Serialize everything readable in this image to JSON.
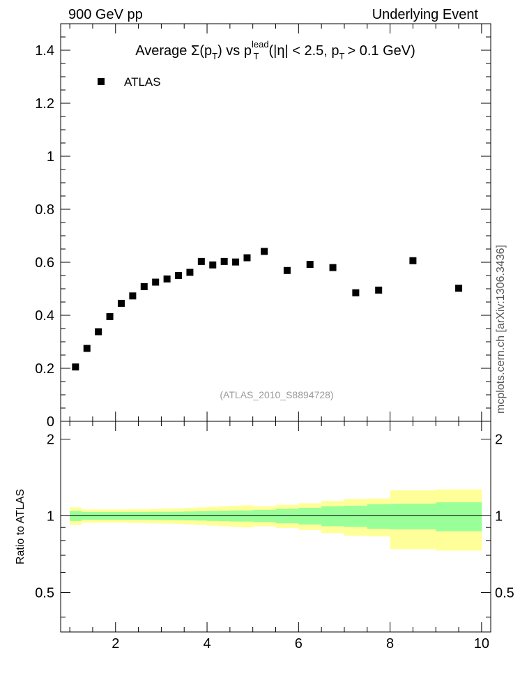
{
  "header": {
    "left": "900 GeV pp",
    "right": "Underlying Event"
  },
  "side_label": "mcplots.cern.ch [arXiv:1306.3436]",
  "reference_label": "(ATLAS_2010_S8894728)",
  "chart_data": [
    {
      "type": "scatter",
      "title": {
        "prefix": "Average",
        "sigma": "Σ(p",
        "sigma_sub": "T",
        "mid": ") vs p",
        "mid_sup": "lead",
        "mid_sub": "T",
        "cut_open": "(|η| < 2.5, p",
        "cut_sub": "T",
        "cut_close": "> 0.1 GeV)"
      },
      "legend": {
        "entry": "ATLAS",
        "position": "top-left"
      },
      "xlim": [
        0.8,
        10.2
      ],
      "ylim": [
        0,
        1.5
      ],
      "yticks": [
        0.2,
        0.4,
        0.6,
        0.8,
        1.0,
        1.2,
        1.4
      ],
      "ytick_labels": [
        "0.2",
        "0.4",
        "0.6",
        "0.8",
        "1",
        "1.2",
        "1.4"
      ],
      "y0_label": "0",
      "series": [
        {
          "name": "ATLAS",
          "x": [
            1.125,
            1.375,
            1.625,
            1.875,
            2.125,
            2.375,
            2.625,
            2.875,
            3.125,
            3.375,
            3.625,
            3.875,
            4.125,
            4.375,
            4.625,
            4.875,
            5.25,
            5.75,
            6.25,
            6.75,
            7.25,
            7.75,
            8.5,
            9.5
          ],
          "y": [
            0.205,
            0.275,
            0.338,
            0.395,
            0.445,
            0.473,
            0.508,
            0.525,
            0.537,
            0.55,
            0.562,
            0.603,
            0.59,
            0.603,
            0.601,
            0.617,
            0.641,
            0.569,
            0.592,
            0.58,
            0.485,
            0.495,
            0.606,
            0.502
          ]
        }
      ]
    },
    {
      "type": "area",
      "ylabel": "Ratio to ATLAS",
      "xlim": [
        0.8,
        10.2
      ],
      "ylim": [
        0.35,
        2.35
      ],
      "xticks": [
        2,
        4,
        6,
        8,
        10
      ],
      "xtick_labels": [
        "2",
        "4",
        "6",
        "8",
        "10"
      ],
      "yticks": [
        0.5,
        1,
        2
      ],
      "ytick_labels": [
        "0.5",
        "1",
        "2"
      ],
      "reference_line": 1,
      "bins": [
        1.0,
        1.25,
        1.5,
        1.75,
        2.0,
        2.25,
        2.5,
        2.75,
        3.0,
        3.25,
        3.5,
        3.75,
        4.0,
        4.25,
        4.5,
        4.75,
        5.0,
        5.5,
        6.0,
        6.5,
        7.0,
        7.5,
        8.0,
        9.0,
        10.0
      ],
      "bands": [
        {
          "name": "stat",
          "color": "#99ff99",
          "lo": [
            0.955,
            0.965,
            0.965,
            0.965,
            0.965,
            0.965,
            0.965,
            0.963,
            0.963,
            0.962,
            0.96,
            0.958,
            0.955,
            0.953,
            0.95,
            0.95,
            0.945,
            0.935,
            0.925,
            0.91,
            0.905,
            0.89,
            0.885,
            0.87
          ],
          "hi": [
            1.045,
            1.035,
            1.035,
            1.035,
            1.035,
            1.035,
            1.035,
            1.037,
            1.037,
            1.038,
            1.04,
            1.042,
            1.045,
            1.047,
            1.05,
            1.05,
            1.055,
            1.065,
            1.075,
            1.09,
            1.095,
            1.11,
            1.115,
            1.13
          ]
        },
        {
          "name": "total",
          "color": "#ffff99",
          "lo": [
            0.92,
            0.94,
            0.94,
            0.94,
            0.94,
            0.938,
            0.936,
            0.934,
            0.932,
            0.93,
            0.925,
            0.92,
            0.915,
            0.91,
            0.905,
            0.9,
            0.91,
            0.895,
            0.88,
            0.855,
            0.835,
            0.83,
            0.74,
            0.73
          ],
          "hi": [
            1.08,
            1.06,
            1.06,
            1.06,
            1.06,
            1.062,
            1.064,
            1.066,
            1.068,
            1.07,
            1.075,
            1.08,
            1.085,
            1.09,
            1.095,
            1.1,
            1.09,
            1.105,
            1.12,
            1.145,
            1.165,
            1.17,
            1.26,
            1.27
          ]
        }
      ]
    }
  ]
}
